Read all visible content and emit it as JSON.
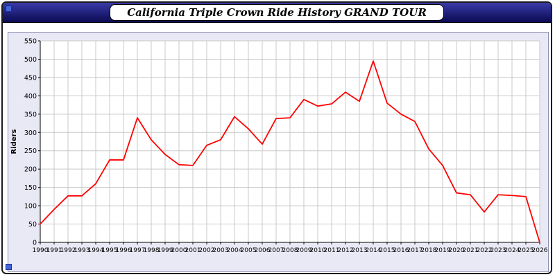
{
  "window": {
    "title": "California Triple Crown Ride History GRAND TOUR"
  },
  "colors": {
    "titlebar_top": "#3a3aa8",
    "titlebar_bottom": "#0a0a52",
    "panel_background": "#e9e9f6",
    "plot_background": "#ffffff",
    "grid": "#c8c8c8",
    "axis": "#000000",
    "line": "#ff0000",
    "corner_square": "#4466dd"
  },
  "chart_data": {
    "type": "line",
    "title": "California Triple Crown Ride History GRAND TOUR",
    "xlabel": "",
    "ylabel": "Riders",
    "ylim": [
      0,
      550
    ],
    "ytick_step": 50,
    "grid": true,
    "legend": "none",
    "line_color": "#ff0000",
    "x": [
      1990,
      1991,
      1992,
      1993,
      1994,
      1995,
      1996,
      1997,
      1998,
      1999,
      2000,
      2001,
      2002,
      2003,
      2004,
      2005,
      2006,
      2007,
      2008,
      2009,
      2010,
      2011,
      2012,
      2013,
      2014,
      2015,
      2016,
      2017,
      2018,
      2019,
      2020,
      2021,
      2022,
      2023,
      2024,
      2025,
      2026
    ],
    "series": [
      {
        "name": "Riders",
        "values": [
          50,
          90,
          127,
          127,
          160,
          225,
          225,
          340,
          280,
          240,
          212,
          210,
          265,
          280,
          343,
          310,
          268,
          338,
          340,
          390,
          372,
          378,
          410,
          385,
          495,
          380,
          350,
          330,
          255,
          210,
          135,
          130,
          83,
          130,
          128,
          125,
          0
        ]
      }
    ]
  }
}
